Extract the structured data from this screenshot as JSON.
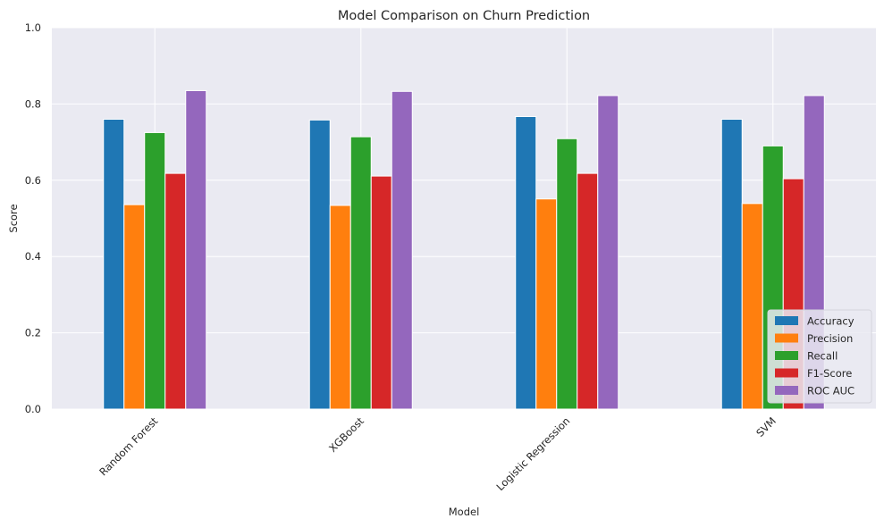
{
  "chart_data": {
    "type": "bar",
    "title": "Model Comparison on Churn Prediction",
    "xlabel": "Model",
    "ylabel": "Score",
    "ylim": [
      0,
      1.0
    ],
    "yticks": [
      "0.0",
      "0.2",
      "0.4",
      "0.6",
      "0.8",
      "1.0"
    ],
    "grid": true,
    "legend_position": "lower-right",
    "categories": [
      "Random Forest",
      "XGBoost",
      "Logistic Regression",
      "SVM"
    ],
    "series": [
      {
        "name": "Accuracy",
        "color": "#1f77b4",
        "values": [
          0.76,
          0.758,
          0.767,
          0.76
        ]
      },
      {
        "name": "Precision",
        "color": "#ff7f0e",
        "values": [
          0.536,
          0.534,
          0.551,
          0.539
        ]
      },
      {
        "name": "Recall",
        "color": "#2ca02c",
        "values": [
          0.725,
          0.714,
          0.709,
          0.69
        ]
      },
      {
        "name": "F1-Score",
        "color": "#d62728",
        "values": [
          0.618,
          0.611,
          0.618,
          0.604
        ]
      },
      {
        "name": "ROC AUC",
        "color": "#9467bd",
        "values": [
          0.835,
          0.833,
          0.822,
          0.822
        ]
      }
    ],
    "colors": {
      "plot_background": "#eaeaf2",
      "grid": "#ffffff"
    }
  }
}
